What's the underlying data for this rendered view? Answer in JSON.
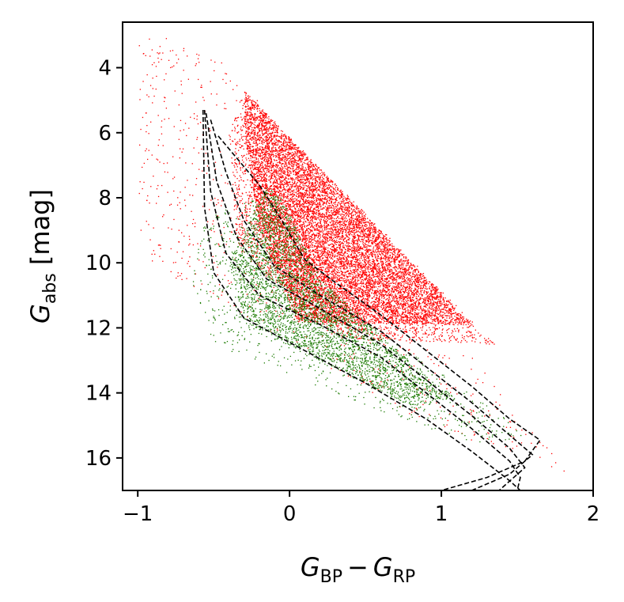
{
  "chart_data": {
    "type": "scatter",
    "xlabel": {
      "main": "G",
      "sub1": "BP",
      "minus": "−",
      "main2": "G",
      "sub2": "RP"
    },
    "ylabel": {
      "main": "G",
      "sub": "abs",
      "unit": " [mag]"
    },
    "xlim": [
      -1.1,
      2.0
    ],
    "ylim": [
      17.0,
      2.6
    ],
    "y_inverted": true,
    "xticks": [
      -1,
      0,
      1,
      2
    ],
    "xtick_labels": [
      "−1",
      "0",
      "1",
      "2"
    ],
    "yticks": [
      4,
      6,
      8,
      10,
      12,
      14,
      16
    ],
    "ytick_labels": [
      "4",
      "6",
      "8",
      "10",
      "12",
      "14",
      "16"
    ],
    "grid": false,
    "series": [
      {
        "color": "#ff0000",
        "marker": "point",
        "density_regions": [
          {
            "kind": "polygon",
            "density": "very-high",
            "points": [
              [
                -0.3,
                4.7
              ],
              [
                1.2,
                11.9
              ],
              [
                0.05,
                11.8
              ],
              [
                -0.2,
                9.0
              ],
              [
                -0.3,
                6.0
              ]
            ]
          },
          {
            "kind": "polygon",
            "density": "high",
            "points": [
              [
                -0.3,
                4.7
              ],
              [
                1.35,
                12.5
              ],
              [
                0.3,
                12.3
              ],
              [
                -0.35,
                9.5
              ],
              [
                -0.4,
                6.0
              ]
            ]
          },
          {
            "kind": "polygon",
            "density": "sparse",
            "points": [
              [
                -1.0,
                2.8
              ],
              [
                -0.5,
                3.4
              ],
              [
                1.85,
                16.5
              ],
              [
                0.9,
                15.0
              ],
              [
                0.0,
                12.5
              ],
              [
                -0.5,
                11.0
              ],
              [
                -1.0,
                10.0
              ]
            ]
          }
        ]
      },
      {
        "color": "#1a7a00",
        "marker": "point",
        "density_regions": [
          {
            "kind": "polygon",
            "density": "high",
            "points": [
              [
                -0.15,
                7.6
              ],
              [
                -0.05,
                8.0
              ],
              [
                0.2,
                10.5
              ],
              [
                0.95,
                13.7
              ],
              [
                1.1,
                14.1
              ],
              [
                0.8,
                14.4
              ],
              [
                0.2,
                13.0
              ],
              [
                -0.3,
                11.8
              ],
              [
                -0.4,
                10.0
              ],
              [
                -0.25,
                8.5
              ]
            ]
          },
          {
            "kind": "polygon",
            "density": "sparse",
            "points": [
              [
                -0.55,
                8.5
              ],
              [
                -0.2,
                8.0
              ],
              [
                0.4,
                11.5
              ],
              [
                1.6,
                15.3
              ],
              [
                1.2,
                15.6
              ],
              [
                0.3,
                14.0
              ],
              [
                -0.5,
                12.5
              ],
              [
                -0.65,
                10.5
              ]
            ]
          }
        ]
      }
    ],
    "isochrones": {
      "color": "#000000",
      "style": "dashed",
      "lines": [
        [
          [
            -0.47,
            6.1
          ],
          [
            -0.2,
            7.6
          ],
          [
            -0.05,
            8.7
          ],
          [
            0.1,
            9.9
          ],
          [
            0.3,
            10.6
          ],
          [
            0.6,
            11.6
          ],
          [
            0.9,
            12.7
          ],
          [
            1.2,
            13.8
          ],
          [
            1.45,
            14.8
          ],
          [
            1.65,
            15.45
          ],
          [
            1.55,
            16.1
          ],
          [
            1.3,
            16.6
          ],
          [
            1.0,
            17.0
          ]
        ],
        [
          [
            -0.52,
            5.6
          ],
          [
            -0.42,
            7.2
          ],
          [
            -0.3,
            8.7
          ],
          [
            -0.1,
            10.1
          ],
          [
            0.2,
            11.0
          ],
          [
            0.6,
            12.1
          ],
          [
            0.9,
            13.2
          ],
          [
            1.2,
            14.3
          ],
          [
            1.45,
            15.3
          ],
          [
            1.6,
            15.9
          ],
          [
            1.45,
            16.5
          ],
          [
            1.2,
            17.0
          ]
        ],
        [
          [
            -0.55,
            5.4
          ],
          [
            -0.48,
            7.5
          ],
          [
            -0.35,
            9.2
          ],
          [
            -0.15,
            10.5
          ],
          [
            0.2,
            11.4
          ],
          [
            0.6,
            12.5
          ],
          [
            0.9,
            13.6
          ],
          [
            1.2,
            14.7
          ],
          [
            1.45,
            15.7
          ],
          [
            1.55,
            16.3
          ],
          [
            1.38,
            17.0
          ]
        ],
        [
          [
            -0.56,
            5.3
          ],
          [
            -0.52,
            7.8
          ],
          [
            -0.42,
            9.7
          ],
          [
            -0.2,
            11.0
          ],
          [
            0.2,
            11.9
          ],
          [
            0.6,
            12.9
          ],
          [
            0.9,
            14.0
          ],
          [
            1.2,
            15.1
          ],
          [
            1.45,
            16.1
          ],
          [
            1.52,
            16.6
          ],
          [
            1.5,
            17.0
          ]
        ],
        [
          [
            -0.57,
            5.3
          ],
          [
            -0.56,
            8.3
          ],
          [
            -0.5,
            10.3
          ],
          [
            -0.3,
            11.7
          ],
          [
            0.1,
            12.7
          ],
          [
            0.5,
            13.7
          ],
          [
            0.9,
            14.8
          ],
          [
            1.2,
            15.8
          ],
          [
            1.45,
            16.7
          ],
          [
            1.52,
            17.0
          ]
        ]
      ]
    }
  }
}
